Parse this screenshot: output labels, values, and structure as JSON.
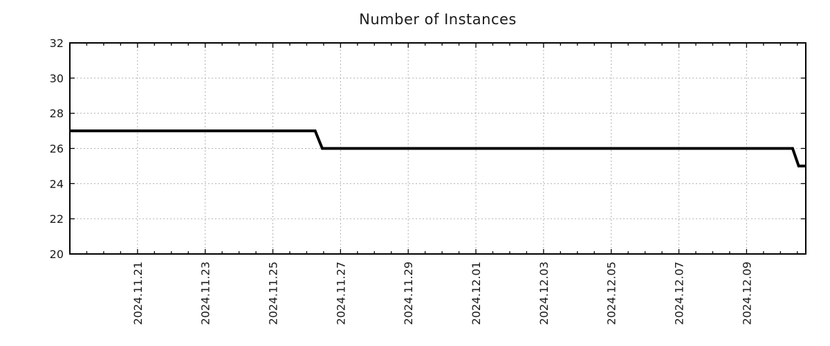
{
  "chart_data": {
    "type": "line",
    "title": "Number of Instances",
    "xlabel": "",
    "ylabel": "",
    "legend": "none",
    "grid": true,
    "ylim": [
      20,
      32
    ],
    "yticks": [
      20,
      22,
      24,
      26,
      28,
      30,
      32
    ],
    "x_domain_days": [
      0,
      21.75
    ],
    "x_domain_dates": [
      "2024-11-19 00:00",
      "2024-12-10 18:00"
    ],
    "minor_tick_step_days": 0.5,
    "xticks": [
      {
        "t": 2,
        "label": "2024.11.21"
      },
      {
        "t": 4,
        "label": "2024.11.23"
      },
      {
        "t": 6,
        "label": "2024.11.25"
      },
      {
        "t": 8,
        "label": "2024.11.27"
      },
      {
        "t": 10,
        "label": "2024.11.29"
      },
      {
        "t": 12,
        "label": "2024.12.01"
      },
      {
        "t": 14,
        "label": "2024.12.03"
      },
      {
        "t": 16,
        "label": "2024.12.05"
      },
      {
        "t": 18,
        "label": "2024.12.07"
      },
      {
        "t": 20,
        "label": "2024.12.09"
      }
    ],
    "series": [
      {
        "name": "instances",
        "points": [
          {
            "t": 0.0,
            "date": "2024-11-19 00:00",
            "value": 27
          },
          {
            "t": 7.25,
            "date": "2024-11-26 06:00",
            "value": 27
          },
          {
            "t": 7.46,
            "date": "2024-11-26 11:00",
            "value": 26
          },
          {
            "t": 21.36,
            "date": "2024-12-10 08:30",
            "value": 26
          },
          {
            "t": 21.54,
            "date": "2024-12-10 13:00",
            "value": 25
          },
          {
            "t": 21.75,
            "date": "2024-12-10 18:00",
            "value": 25
          }
        ]
      }
    ],
    "colors": {
      "line": "#000000",
      "grid": "#b0b0b0",
      "axis": "#000000",
      "text": "#1a1a1a",
      "background": "#ffffff"
    }
  }
}
